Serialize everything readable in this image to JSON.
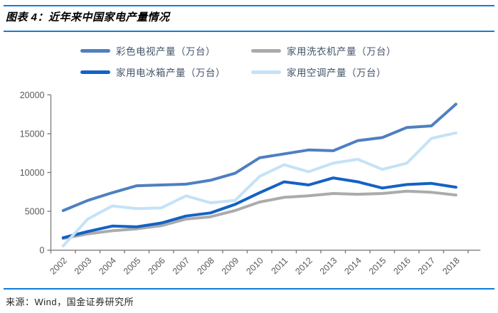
{
  "header": {
    "title": "图表 4：近年来中国家电产量情况"
  },
  "footer": {
    "source": "来源：Wind，国金证券研究所"
  },
  "colors": {
    "rule_blue": "#0d7ddb",
    "axis": "#808080",
    "tick_label": "#595959",
    "legend_text": "#44546a",
    "background": "#ffffff"
  },
  "chart_data": {
    "type": "line",
    "categories": [
      "2002",
      "2003",
      "2004",
      "2005",
      "2006",
      "2007",
      "2008",
      "2009",
      "2010",
      "2011",
      "2012",
      "2013",
      "2014",
      "2015",
      "2016",
      "2017",
      "2018"
    ],
    "series": [
      {
        "name": "彩色电视产量（万台）",
        "color": "#4e7fc1",
        "values": [
          5100,
          6400,
          7400,
          8300,
          8400,
          8500,
          9000,
          9900,
          11900,
          12400,
          12900,
          12800,
          14100,
          14500,
          15800,
          16000,
          18800
        ]
      },
      {
        "name": "家用洗衣机产量（万台）",
        "color": "#ababab",
        "values": [
          1500,
          2100,
          2500,
          2750,
          3150,
          4000,
          4300,
          5100,
          6200,
          6800,
          7000,
          7300,
          7200,
          7300,
          7600,
          7450,
          7100
        ]
      },
      {
        "name": "家用电冰箱产量（万台）",
        "color": "#1362c5",
        "values": [
          1600,
          2400,
          3100,
          3000,
          3500,
          4400,
          4800,
          5900,
          7400,
          8800,
          8400,
          9300,
          8800,
          8000,
          8450,
          8600,
          8100
        ]
      },
      {
        "name": "家用空调产量（万台）",
        "color": "#c5e2f6",
        "values": [
          550,
          4000,
          5700,
          5350,
          5450,
          7000,
          6100,
          6400,
          9500,
          11000,
          10100,
          11200,
          11700,
          10400,
          11200,
          14400,
          15100
        ]
      }
    ],
    "ylim": [
      0,
      20000
    ],
    "ytick_step": 5000,
    "grid": false,
    "legend_position": "top",
    "legend_order_note": "row-major 2x2: series 0,1 top row; 2,3 bottom row"
  }
}
